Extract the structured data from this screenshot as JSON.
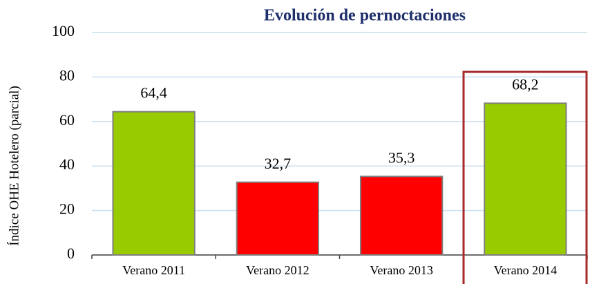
{
  "chart_data": {
    "type": "bar",
    "title": "Evolución de pernoctaciones",
    "y_label": "Índice OHE Hotelero (parcial)",
    "categories": [
      "Verano 2011",
      "Verano 2012",
      "Verano 2013",
      "Verano 2014"
    ],
    "values": [
      64.4,
      32.7,
      35.3,
      68.2
    ],
    "value_labels": [
      "64,4",
      "32,7",
      "35,3",
      "68,2"
    ],
    "colors": [
      "#99cc00",
      "#ff0000",
      "#ff0000",
      "#99cc00"
    ],
    "ylim": [
      0,
      100
    ],
    "yticks": [
      0,
      20,
      40,
      60,
      80,
      100
    ],
    "grid": true
  }
}
